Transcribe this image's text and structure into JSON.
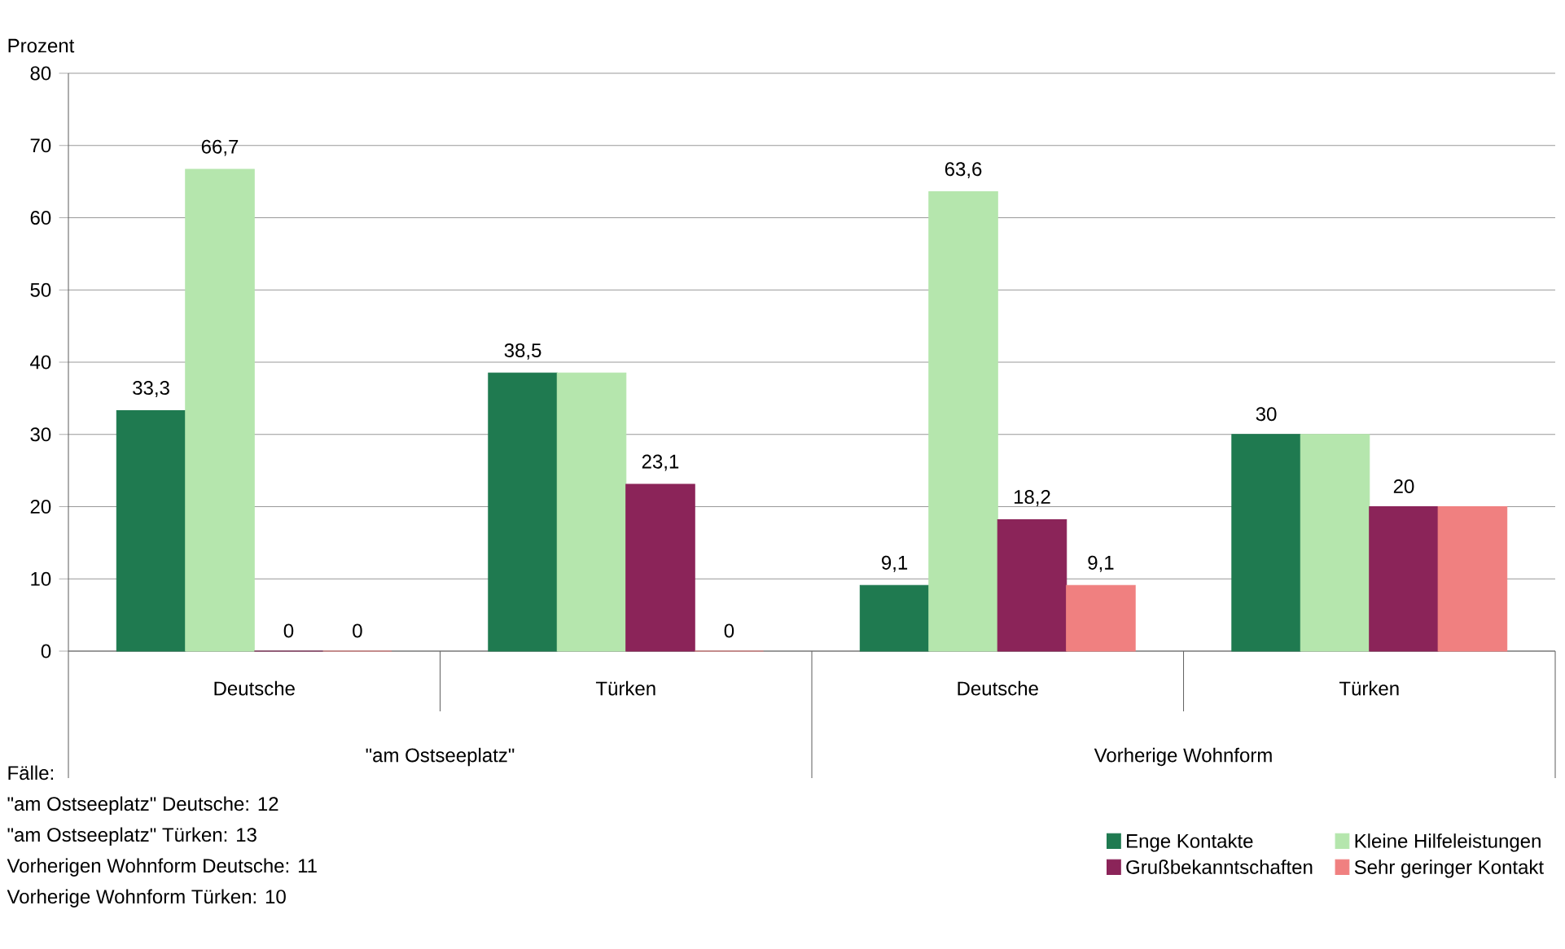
{
  "chart_data": {
    "type": "bar",
    "ylabel": "Prozent",
    "categories": [
      "Deutsche",
      "Türken",
      "Deutsche",
      "Türken"
    ],
    "series": [
      {
        "name": "Enge Kontakte",
        "color": "#1f7a50",
        "values": [
          33.3,
          38.5,
          9.1,
          30
        ],
        "value_labels": [
          "33,3",
          "38,5",
          "9,1",
          "30"
        ]
      },
      {
        "name": "Kleine Hilfeleistungen",
        "color": "#b5e6ad",
        "values": [
          66.7,
          38.5,
          63.6,
          30
        ],
        "value_labels": [
          "66,7",
          null,
          "63,6",
          null
        ]
      },
      {
        "name": "Grußbekanntschaften",
        "color": "#8b2459",
        "values": [
          0,
          23.1,
          18.2,
          20
        ],
        "value_labels": [
          "0",
          "23,1",
          "18,2",
          "20"
        ]
      },
      {
        "name": "Sehr geringer Kontakt",
        "color": "#f08080",
        "values": [
          0,
          0,
          9.1,
          20
        ],
        "value_labels": [
          "0",
          "0",
          "9,1",
          null
        ]
      }
    ],
    "ylim": [
      0,
      80
    ],
    "yticks": [
      0,
      10,
      20,
      30,
      40,
      50,
      60,
      70,
      80
    ],
    "grid": "y",
    "legend": "bottom right",
    "annotations": [
      "\"am Ostseeplatz\"",
      "Vorherige Wohnform",
      "Fälle:",
      "\"am Ostseeplatz\"  Deutsche: 12",
      "\"am Ostseeplatz\" Türken: 13",
      "Vorherigen Wohnform Deutsche: 11",
      "Vorherige Wohnform Türken: 10"
    ]
  }
}
